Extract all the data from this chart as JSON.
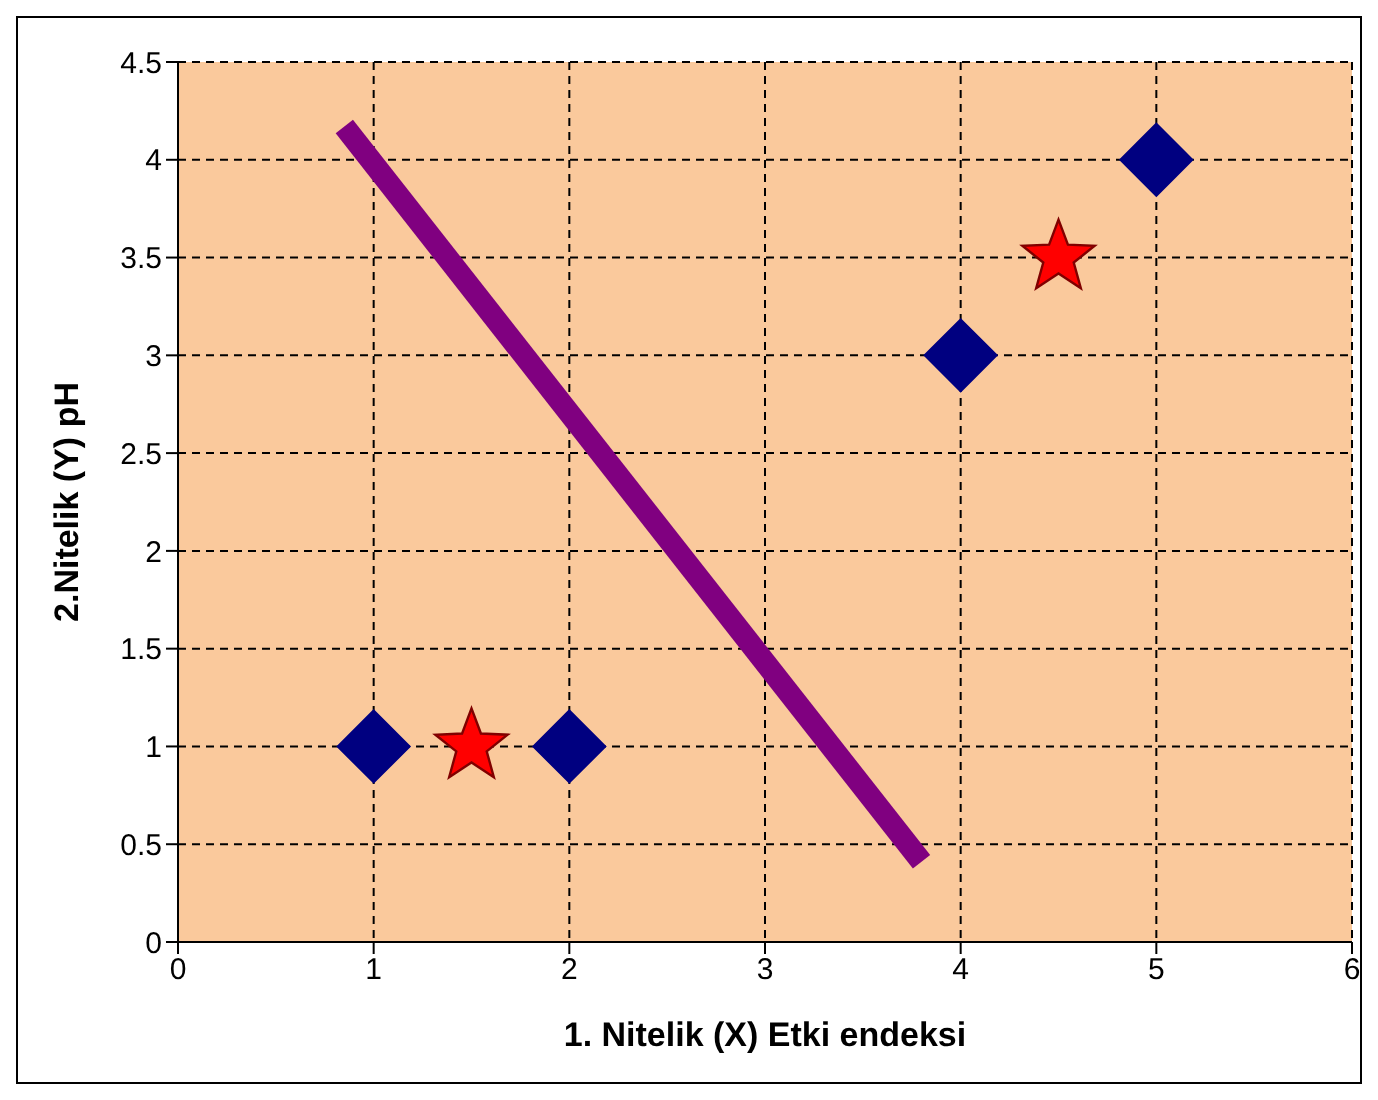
{
  "chart_data": {
    "type": "scatter",
    "xlabel": "1. Nitelik (X) Etki endeksi",
    "ylabel": "2.Nitelik (Y) pH",
    "xlim": [
      0,
      6
    ],
    "ylim": [
      0,
      4.5
    ],
    "xticks": [
      0,
      1,
      2,
      3,
      4,
      5,
      6
    ],
    "yticks": [
      0,
      0.5,
      1,
      1.5,
      2,
      2.5,
      3,
      3.5,
      4,
      4.5
    ],
    "grid": true,
    "series": [
      {
        "type": "line",
        "marker": "none",
        "line_style": "solid",
        "color": "#800080",
        "x": [
          0.85,
          3.8
        ],
        "values": [
          4.17,
          0.41
        ]
      },
      {
        "type": "scatter",
        "marker": "diamond",
        "color": "#000080",
        "x": [
          1,
          2,
          4,
          5
        ],
        "values": [
          1,
          1,
          3,
          4
        ]
      },
      {
        "type": "scatter",
        "marker": "star",
        "color": "#ff0000",
        "x": [
          1.5,
          4.5
        ],
        "values": [
          1,
          3.5
        ]
      }
    ]
  }
}
